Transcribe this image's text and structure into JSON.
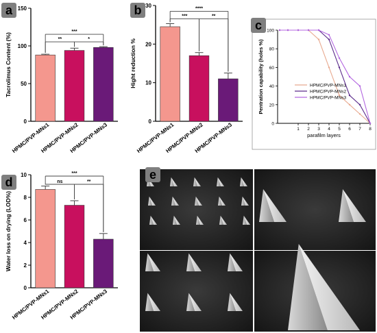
{
  "colors": {
    "ns1": "#f4978e",
    "ns2": "#c8105e",
    "ns3": "#6a1a78",
    "label_box": "#7f7f7f",
    "line1": "#e8a98f",
    "line2": "#5a2a8a",
    "line3": "#b366e0"
  },
  "chart_data": [
    {
      "panel_label": "a",
      "type": "bar",
      "ylabel": "Tacrolimus Content (%)",
      "yticks": [
        "0",
        "50",
        "100",
        "150"
      ],
      "ylim": [
        0,
        150
      ],
      "categories": [
        "HPMC/PVP-MNs1",
        "HPMC/PVP-MNs2",
        "HPMC/PVP-MNs3"
      ],
      "values": [
        88,
        94,
        98
      ],
      "errors": [
        1,
        3,
        1
      ],
      "significance": [
        {
          "from": 0,
          "to": 1,
          "label": "**"
        },
        {
          "from": 1,
          "to": 2,
          "label": "*"
        },
        {
          "from": 0,
          "to": 2,
          "label": "***"
        }
      ]
    },
    {
      "panel_label": "b",
      "type": "bar",
      "ylabel": "Hight reduction %",
      "yticks": [
        "0",
        "10",
        "20",
        "30"
      ],
      "ylim": [
        0,
        30
      ],
      "categories": [
        "HPMC/PVP-MNs1",
        "HPMC/PVP-MNs2",
        "HPMC/PVP-MNs3"
      ],
      "values": [
        24.5,
        17,
        11
      ],
      "errors": [
        0.8,
        0.8,
        1.5
      ],
      "significance": [
        {
          "from": 0,
          "to": 1,
          "label": "***"
        },
        {
          "from": 1,
          "to": 2,
          "label": "**"
        },
        {
          "from": 0,
          "to": 2,
          "label": "****"
        }
      ]
    },
    {
      "panel_label": "c",
      "type": "line",
      "ylabel": "Pentration capability (holes %)",
      "xlabel": "parafilm layers",
      "xticks": [
        "1",
        "2",
        "3",
        "4",
        "5",
        "6",
        "7",
        "8"
      ],
      "yticks": [
        "0",
        "20",
        "40",
        "60",
        "80",
        "100"
      ],
      "xlim": [
        -1,
        8
      ],
      "ylim": [
        0,
        100
      ],
      "series": [
        {
          "name": "HPMC/PVP-MNs1",
          "x": [
            -0.8,
            0,
            1,
            2,
            3,
            4,
            5,
            6,
            7,
            8
          ],
          "y": [
            100,
            100,
            100,
            100,
            90,
            60,
            30,
            20,
            10,
            0
          ]
        },
        {
          "name": "HPMC/PVP-MNs2",
          "x": [
            -0.8,
            0,
            1,
            2,
            3,
            4,
            5,
            6,
            7,
            8
          ],
          "y": [
            100,
            100,
            100,
            100,
            100,
            90,
            60,
            30,
            20,
            0
          ]
        },
        {
          "name": "HPMC/PVP-MNs3",
          "x": [
            -0.8,
            0,
            1,
            2,
            3,
            4,
            5,
            6,
            7,
            8
          ],
          "y": [
            100,
            100,
            100,
            100,
            100,
            95,
            70,
            50,
            40,
            0
          ]
        }
      ]
    },
    {
      "panel_label": "d",
      "type": "bar",
      "ylabel": "Water loss on drying (LOD%)",
      "yticks": [
        "0",
        "2",
        "4",
        "6",
        "8",
        "10"
      ],
      "ylim": [
        0,
        10
      ],
      "categories": [
        "HPMC/PVP-MNs1",
        "HPMC/PVP-MNs2",
        "HPMC/PVP-MNs3"
      ],
      "values": [
        8.7,
        7.3,
        4.3
      ],
      "errors": [
        0.3,
        0.4,
        0.5
      ],
      "significance": [
        {
          "from": 0,
          "to": 1,
          "label": "ns"
        },
        {
          "from": 1,
          "to": 2,
          "label": "**"
        },
        {
          "from": 0,
          "to": 2,
          "label": "***"
        }
      ]
    }
  ],
  "panel_e": {
    "label": "e"
  }
}
